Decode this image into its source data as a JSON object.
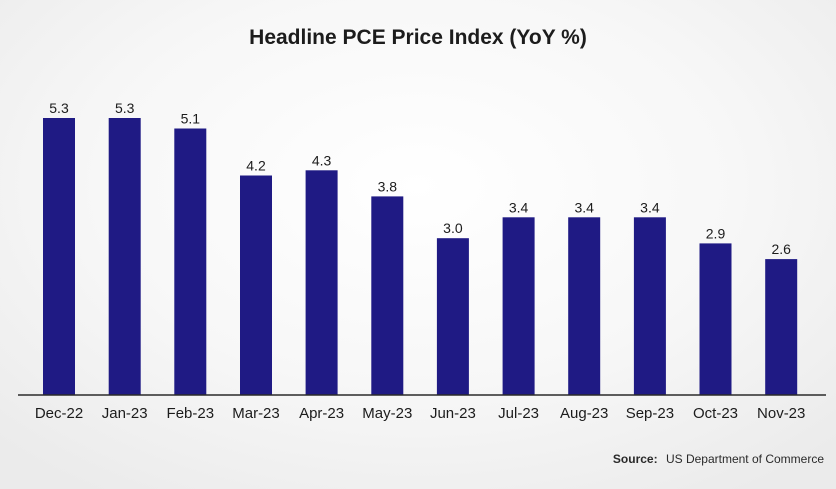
{
  "chart_data": {
    "type": "bar",
    "title": "Headline PCE Price Index (YoY %)",
    "categories": [
      "Dec-22",
      "Jan-23",
      "Feb-23",
      "Mar-23",
      "Apr-23",
      "May-23",
      "Jun-23",
      "Jul-23",
      "Aug-23",
      "Sep-23",
      "Oct-23",
      "Nov-23"
    ],
    "values": [
      5.3,
      5.3,
      5.1,
      4.2,
      4.3,
      3.8,
      3.0,
      3.4,
      3.4,
      3.4,
      2.9,
      2.6
    ],
    "value_labels": [
      "5.3",
      "5.3",
      "5.1",
      "4.2",
      "4.3",
      "3.8",
      "3.0",
      "3.4",
      "3.4",
      "3.4",
      "2.9",
      "2.6"
    ],
    "xlabel": "",
    "ylabel": "",
    "ylim": [
      0,
      5.5
    ],
    "grid": false,
    "bar_color": "#1f1a84"
  },
  "source": {
    "label": "Source:",
    "text": "US Department of Commerce"
  }
}
